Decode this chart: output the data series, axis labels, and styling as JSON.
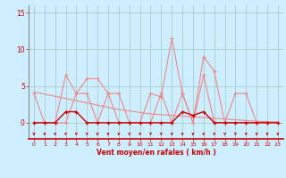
{
  "x": [
    0,
    1,
    2,
    3,
    4,
    5,
    6,
    7,
    8,
    9,
    10,
    11,
    12,
    13,
    14,
    15,
    16,
    17,
    18,
    19,
    20,
    21,
    22,
    23
  ],
  "line1_rafales": [
    0,
    0,
    0,
    6.5,
    4,
    6,
    6,
    4,
    4,
    0,
    0,
    4,
    3.5,
    11.5,
    4,
    0,
    9,
    7,
    0,
    4,
    4,
    0,
    0,
    0
  ],
  "line2_moyen": [
    4,
    0,
    0,
    0,
    4,
    4,
    0,
    4,
    0,
    0,
    0,
    0,
    4,
    0,
    4,
    0,
    6.5,
    0,
    0,
    0,
    0,
    0,
    0,
    0
  ],
  "line3_flat": [
    0,
    0,
    0,
    1.5,
    1.5,
    0,
    0,
    0,
    0,
    0,
    0,
    0,
    0,
    0,
    1.5,
    1,
    1.5,
    0,
    0,
    0,
    0,
    0,
    0,
    0
  ],
  "line4_trend": [
    4.2,
    3.9,
    3.6,
    3.3,
    3.0,
    2.7,
    2.4,
    2.1,
    1.8,
    1.6,
    1.4,
    1.2,
    1.1,
    1.0,
    0.9,
    0.8,
    0.7,
    0.6,
    0.5,
    0.4,
    0.3,
    0.2,
    0.15,
    0.1
  ],
  "bg_color": "#cceeff",
  "grid_color": "#aacccc",
  "line_color_light": "#ee8888",
  "line_color_dark": "#cc0000",
  "tick_color": "#cc0000",
  "xlabel": "Vent moyen/en rafales ( km/h )",
  "ylabel_ticks": [
    0,
    5,
    10,
    15
  ],
  "xlim": [
    -0.5,
    23.5
  ],
  "ylim": [
    -2.2,
    16
  ],
  "xticks": [
    0,
    1,
    2,
    3,
    4,
    5,
    6,
    7,
    8,
    9,
    10,
    11,
    12,
    13,
    14,
    15,
    16,
    17,
    18,
    19,
    20,
    21,
    22,
    23
  ]
}
